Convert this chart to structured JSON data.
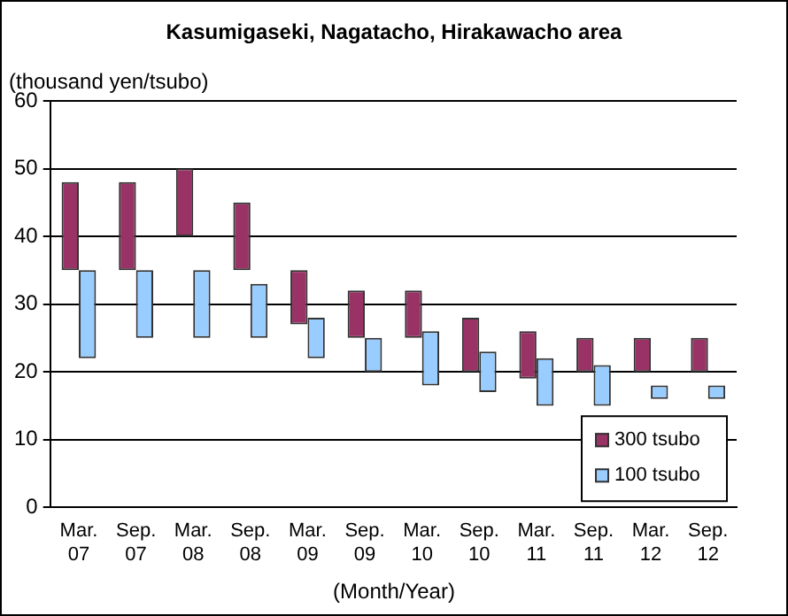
{
  "chart_data": {
    "type": "bar",
    "title": "Kasumigaseki, Nagatacho, Hirakawacho area",
    "ylabel": "(thousand yen/tsubo)",
    "xlabel": "(Month/Year)",
    "categories": [
      "Mar. 07",
      "Sep. 07",
      "Mar. 08",
      "Sep. 08",
      "Mar. 09",
      "Sep. 09",
      "Mar. 10",
      "Sep. 10",
      "Mar. 11",
      "Sep. 11",
      "Mar. 12",
      "Sep. 12"
    ],
    "series": [
      {
        "name": "300 tsubo",
        "color": "#993366",
        "base": [
          35,
          35,
          40,
          35,
          27,
          25,
          25,
          20,
          19,
          20,
          20,
          20
        ],
        "values": [
          13,
          13,
          10,
          10,
          8,
          7,
          7,
          8,
          7,
          5,
          5,
          5
        ]
      },
      {
        "name": "100 tsubo",
        "color": "#99ccff",
        "base": [
          22,
          25,
          25,
          25,
          22,
          20,
          18,
          17,
          15,
          15,
          16,
          16
        ],
        "values": [
          13,
          10,
          10,
          8,
          6,
          5,
          8,
          6,
          7,
          6,
          2,
          2
        ]
      }
    ],
    "ylim": [
      0,
      60
    ],
    "yticks": [
      0,
      10,
      20,
      30,
      40,
      50,
      60
    ],
    "grid": "y",
    "legend": "bottom right"
  }
}
